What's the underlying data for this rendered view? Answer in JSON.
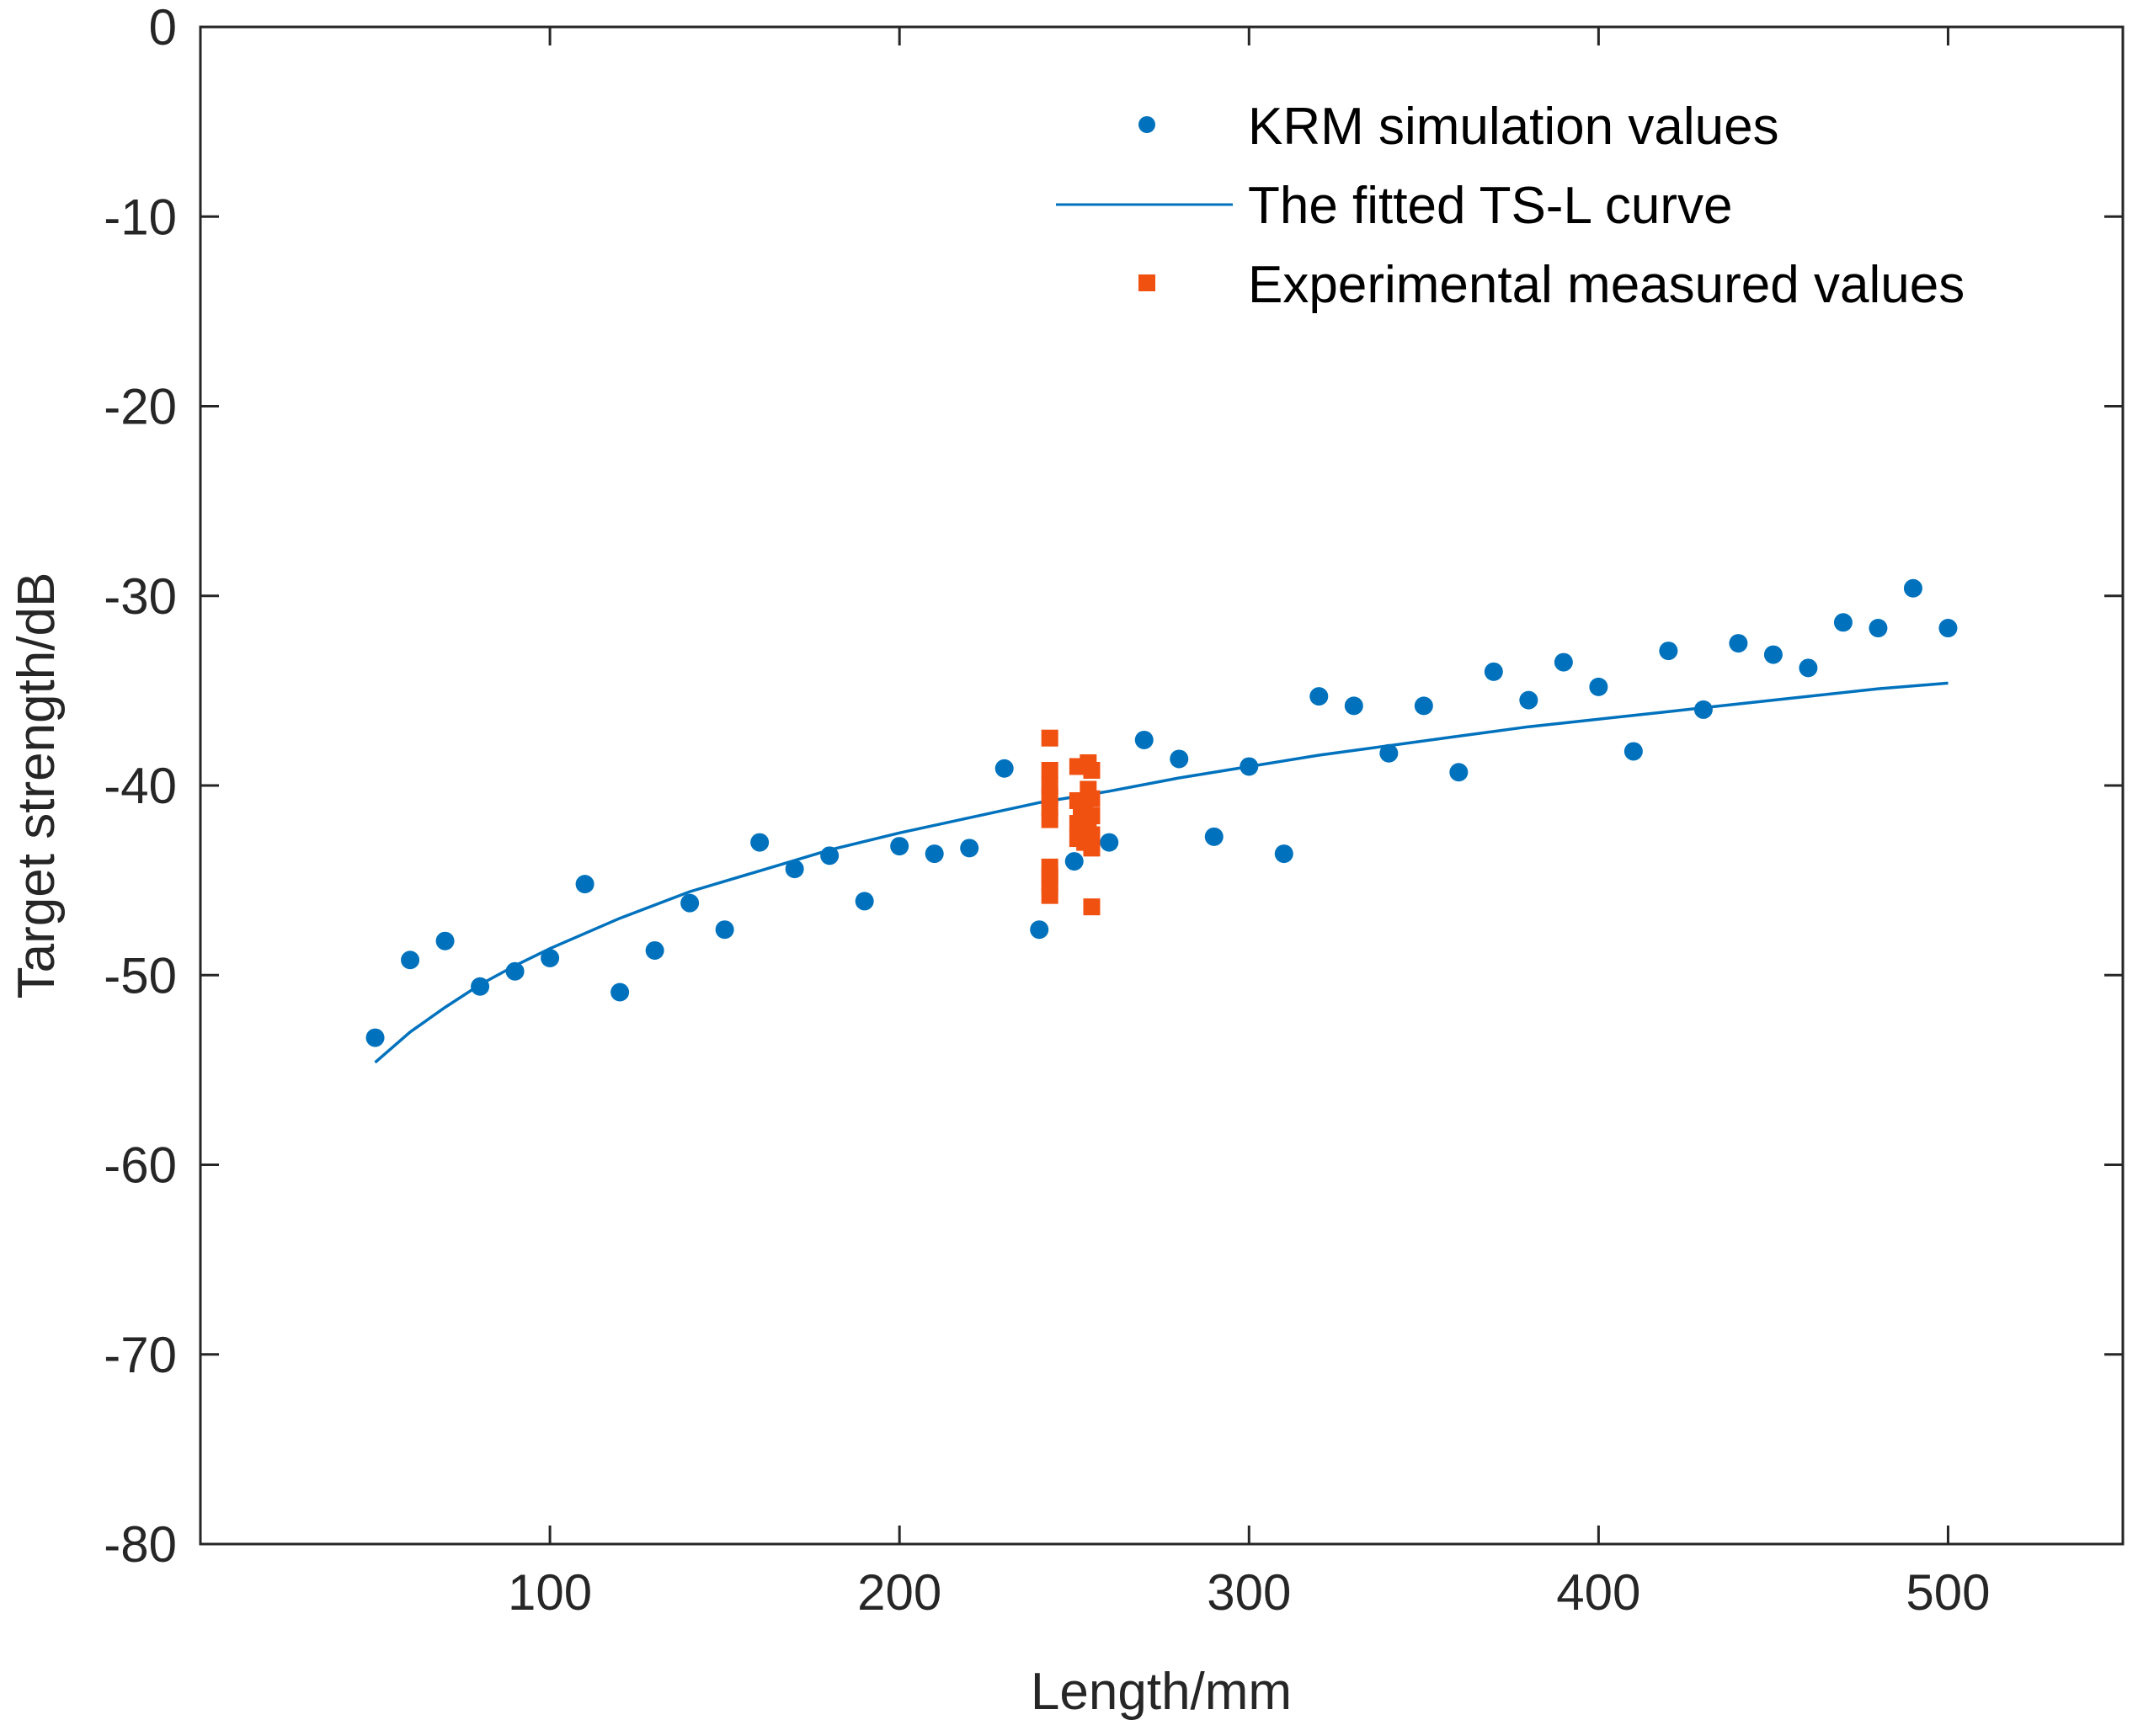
{
  "chart_data": {
    "type": "scatter",
    "title": "",
    "xlabel": "Length/mm",
    "ylabel": "Target strength/dB",
    "xlim": [
      0,
      550
    ],
    "ylim": [
      -80,
      0
    ],
    "xticks": [
      100,
      200,
      300,
      400,
      500
    ],
    "yticks": [
      0,
      -10,
      -20,
      -30,
      -40,
      -50,
      -60,
      -70,
      -80
    ],
    "grid": false,
    "legend_position": "top-right",
    "colors": {
      "simulation": "#0072BD",
      "fit": "#0072BD",
      "experimental": "#F05010"
    },
    "series": [
      {
        "name": "KRM simulation values",
        "kind": "scatter",
        "marker": "circle",
        "x": [
          50,
          60,
          70,
          80,
          90,
          100,
          110,
          120,
          130,
          140,
          150,
          160,
          170,
          180,
          190,
          200,
          210,
          220,
          230,
          240,
          250,
          260,
          270,
          280,
          290,
          300,
          310,
          320,
          330,
          340,
          350,
          360,
          370,
          380,
          390,
          400,
          410,
          420,
          430,
          440,
          450,
          460,
          470,
          480,
          490,
          500
        ],
        "y": [
          -53.3,
          -49.2,
          -48.2,
          -50.6,
          -49.8,
          -49.1,
          -45.2,
          -50.9,
          -48.7,
          -46.2,
          -47.6,
          -43.0,
          -44.4,
          -43.7,
          -46.1,
          -43.2,
          -43.6,
          -43.3,
          -39.1,
          -47.6,
          -44.0,
          -43.0,
          -37.6,
          -38.6,
          -42.7,
          -39.0,
          -43.6,
          -35.3,
          -35.8,
          -38.3,
          -35.8,
          -39.3,
          -34.0,
          -35.5,
          -33.5,
          -34.8,
          -38.2,
          -32.9,
          -36.0,
          -32.5,
          -33.1,
          -33.8,
          -31.4,
          -31.7,
          -29.6,
          -31.7
        ]
      },
      {
        "name": "The fitted TS-L curve",
        "kind": "line",
        "x": [
          50,
          60,
          70,
          80,
          90,
          100,
          120,
          140,
          160,
          180,
          200,
          220,
          240,
          260,
          280,
          300,
          320,
          340,
          360,
          380,
          400,
          420,
          440,
          460,
          480,
          500
        ],
        "y": [
          -54.6,
          -53.0,
          -51.7,
          -50.5,
          -49.5,
          -48.6,
          -47.0,
          -45.6,
          -44.5,
          -43.4,
          -42.5,
          -41.7,
          -40.9,
          -40.3,
          -39.6,
          -39.0,
          -38.4,
          -37.9,
          -37.4,
          -36.9,
          -36.5,
          -36.1,
          -35.7,
          -35.3,
          -34.9,
          -34.6
        ]
      },
      {
        "name": "Experimental measured values",
        "kind": "scatter",
        "marker": "square",
        "x": [
          243,
          243,
          243,
          243,
          243,
          243,
          243,
          243,
          243,
          243,
          251,
          251,
          251,
          251,
          252,
          253,
          253,
          254,
          254,
          254,
          255,
          255,
          255,
          255,
          255,
          255
        ],
        "y": [
          -37.5,
          -39.2,
          -40.6,
          -41.2,
          -41.8,
          -44.3,
          -44.8,
          -45.2,
          -45.8,
          -40.0,
          -39.0,
          -40.8,
          -42.0,
          -42.8,
          -41.5,
          -41.0,
          -43.0,
          -38.8,
          -40.2,
          -42.3,
          -39.2,
          -40.7,
          -41.6,
          -42.6,
          -43.3,
          -46.4
        ]
      }
    ]
  }
}
